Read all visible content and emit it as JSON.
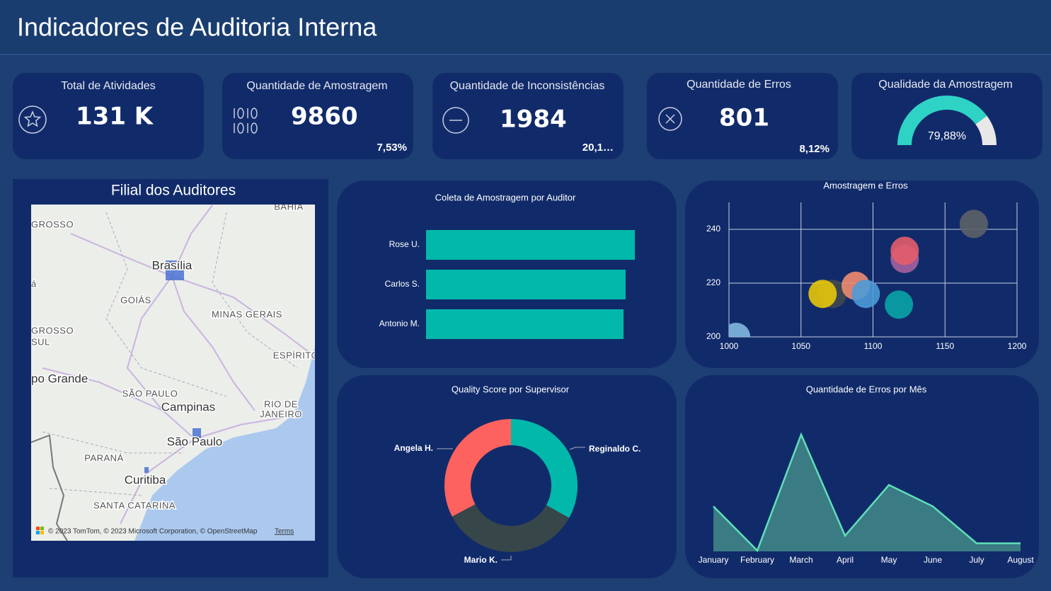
{
  "header": {
    "title": "Indicadores de Auditoria Interna"
  },
  "kpis": [
    {
      "title": "Total de Atividades",
      "value": "131 K"
    },
    {
      "title": "Quantidade de Amostragem",
      "value": "9860",
      "sub": "7,53%"
    },
    {
      "title": "Quantidade de Inconsistências",
      "value": "1984",
      "sub": "20,1…"
    },
    {
      "title": "Quantidade de Erros",
      "value": "801",
      "sub": "8,12%"
    }
  ],
  "map": {
    "title": "Filial dos Auditores",
    "labels": [
      "BAHIA",
      "GROSSO",
      "á",
      "Brasília",
      "GOIÁS",
      "MINAS GERAIS",
      "GROSSO",
      "SUL",
      "ESPÍRITO",
      "po Grande",
      "SÃO PAULO",
      "Campinas",
      "RIO DE",
      "JANEIRO",
      "São Paulo",
      "PARANÁ",
      "Curitiba",
      "SANTA CATARINA"
    ],
    "attribution": "© 2023 TomTom, © 2023 Microsoft Corporation, © OpenStreetMap",
    "terms": "Terms"
  },
  "chart_data": [
    {
      "type": "gauge",
      "title": "Qualidade da Amostragem",
      "value": 79.88,
      "value_label": "79,88%",
      "ylim": [
        0,
        100
      ],
      "color": "#2ed3c6",
      "track_color": "#e8e8e8"
    },
    {
      "type": "bar",
      "title": "Coleta de Amostragem por Auditor",
      "categories": [
        "Rose U.",
        "Carlos S.",
        "Antonio M."
      ],
      "values": [
        3398,
        3248,
        3214
      ],
      "color": "#01b8aa"
    },
    {
      "type": "scatter",
      "title": "Amostragem e Erros",
      "x": [
        1005,
        1072,
        1065,
        1088,
        1095,
        1122,
        1122,
        1118,
        1170
      ],
      "values": [
        200,
        216,
        216,
        219,
        216,
        229,
        232,
        212,
        242
      ],
      "colors": [
        "#7fb8e0",
        "#404850",
        "#e8c70a",
        "#ef8b6f",
        "#4b9ad8",
        "#a5619e",
        "#e35d6a",
        "#0aa4a6",
        "#5c6268"
      ],
      "xlim": [
        1000,
        1200
      ],
      "xticks": [
        1000,
        1050,
        1100,
        1150,
        1200
      ],
      "ylim": [
        200,
        250
      ],
      "yticks": [
        200,
        220,
        240
      ],
      "grid": true
    },
    {
      "type": "donut",
      "title": "Quality Score por Supervisor",
      "categories": [
        "Reginaldo C.",
        "Mario K.",
        "Angela H."
      ],
      "values": [
        33.1,
        34.2,
        32.7
      ],
      "colors": [
        "#01b8aa",
        "#374649",
        "#fd625e"
      ]
    },
    {
      "type": "area",
      "title": "Quantidade de Erros por Mês",
      "categories": [
        "January",
        "February",
        "March",
        "April",
        "May",
        "June",
        "July",
        "August"
      ],
      "values": [
        118,
        2,
        306,
        41,
        174,
        118,
        21,
        21
      ],
      "color": "#5fe0b8",
      "fill": "#3d7f86"
    }
  ]
}
